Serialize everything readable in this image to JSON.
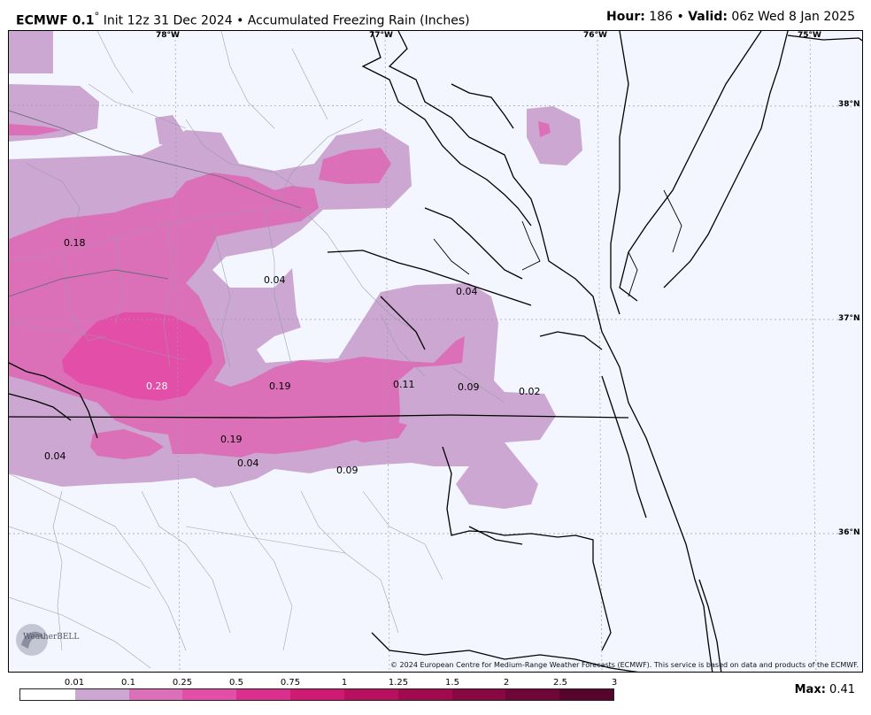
{
  "header": {
    "model_name": "ECMWF 0.1",
    "degree_symbol": "°",
    "init_text": "Init 12z 31 Dec 2024",
    "bullet": "•",
    "product": "Accumulated Freezing Rain (Inches)",
    "hour_label": "Hour:",
    "hour_value": "186",
    "valid_label": "Valid:",
    "valid_value": "06z Wed 8 Jan 2025"
  },
  "map": {
    "longitude_labels": [
      "78°W",
      "77°W",
      "76°W",
      "75°W"
    ],
    "latitude_labels": [
      "38°N",
      "37°N",
      "36°N"
    ],
    "contour_labels": [
      "0.18",
      "0.04",
      "0.04",
      "0.28",
      "0.19",
      "0.11",
      "0.09",
      "0.02",
      "0.19",
      "0.04",
      "0.04",
      "0.09"
    ],
    "credit": "© 2024 European Centre for Medium-Range Weather Forecasts (ECMWF). This service is based on data and products of the ECMWF.",
    "logo_text": "WeatherBELL"
  },
  "legend": {
    "ticks": [
      "0.01",
      "0.1",
      "0.25",
      "0.5",
      "0.75",
      "1",
      "1.25",
      "1.5",
      "2",
      "2.5",
      "3"
    ],
    "colors": [
      "#ffffff",
      "#cba7d1",
      "#db70b9",
      "#e34fa8",
      "#dc2e8c",
      "#cf1a73",
      "#b90f5f",
      "#a10a4f",
      "#870843",
      "#6e0637",
      "#56042c"
    ],
    "max_label": "Max:",
    "max_value": "0.41"
  }
}
